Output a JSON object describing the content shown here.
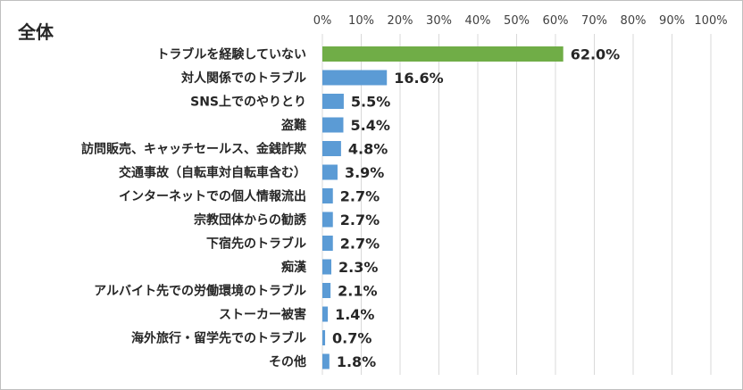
{
  "chart_data": {
    "type": "bar",
    "orientation": "horizontal",
    "title": "全体",
    "xlim": [
      0,
      100
    ],
    "xtick_labels": [
      "0%",
      "10%",
      "20%",
      "30%",
      "40%",
      "50%",
      "60%",
      "70%",
      "80%",
      "90%",
      "100%"
    ],
    "grid": true,
    "categories": [
      "トラブルを経験していない",
      "対人関係でのトラブル",
      "SNS上でのやりとり",
      "盗難",
      "訪問販売、キャッチセールス、金銭詐欺",
      "交通事故（自転車対自転車含む）",
      "インターネットでの個人情報流出",
      "宗教団体からの勧誘",
      "下宿先のトラブル",
      "痴漢",
      "アルバイト先での労働環境のトラブル",
      "ストーカー被害",
      "海外旅行・留学先でのトラブル",
      "その他"
    ],
    "values": [
      62.0,
      16.6,
      5.5,
      5.4,
      4.8,
      3.9,
      2.7,
      2.7,
      2.7,
      2.3,
      2.1,
      1.4,
      0.7,
      1.8
    ],
    "value_labels": [
      "62.0%",
      "16.6%",
      "5.5%",
      "5.4%",
      "4.8%",
      "3.9%",
      "2.7%",
      "2.7%",
      "2.7%",
      "2.3%",
      "2.1%",
      "1.4%",
      "0.7%",
      "1.8%"
    ],
    "bar_colors": [
      "#70ad47",
      "#5b9bd5",
      "#5b9bd5",
      "#5b9bd5",
      "#5b9bd5",
      "#5b9bd5",
      "#5b9bd5",
      "#5b9bd5",
      "#5b9bd5",
      "#5b9bd5",
      "#5b9bd5",
      "#5b9bd5",
      "#5b9bd5",
      "#5b9bd5"
    ],
    "gridline_color": "#d9d9d9"
  }
}
